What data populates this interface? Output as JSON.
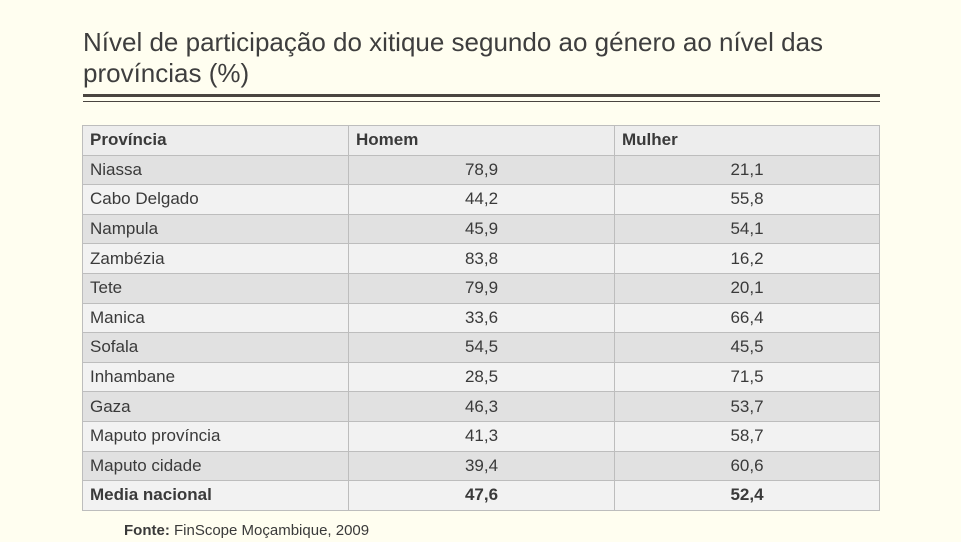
{
  "title": "Nível de participação do xitique segundo ao género ao nível das províncias (%)",
  "table": {
    "headers": [
      "Província",
      "Homem",
      "Mulher"
    ],
    "rows": [
      [
        "Niassa",
        "78,9",
        "21,1"
      ],
      [
        "Cabo Delgado",
        "44,2",
        "55,8"
      ],
      [
        "Nampula",
        "45,9",
        "54,1"
      ],
      [
        "Zambézia",
        "83,8",
        "16,2"
      ],
      [
        "Tete",
        "79,9",
        "20,1"
      ],
      [
        "Manica",
        "33,6",
        "66,4"
      ],
      [
        "Sofala",
        "54,5",
        "45,5"
      ],
      [
        "Inhambane",
        "28,5",
        "71,5"
      ],
      [
        "Gaza",
        "46,3",
        "53,7"
      ],
      [
        "Maputo província",
        "41,3",
        "58,7"
      ],
      [
        "Maputo cidade",
        "39,4",
        "60,6"
      ]
    ],
    "total": [
      "Media nacional",
      "47,6",
      "52,4"
    ]
  },
  "source": {
    "label": "Fonte:",
    "text": "FinScope Moçambique, 2009"
  }
}
